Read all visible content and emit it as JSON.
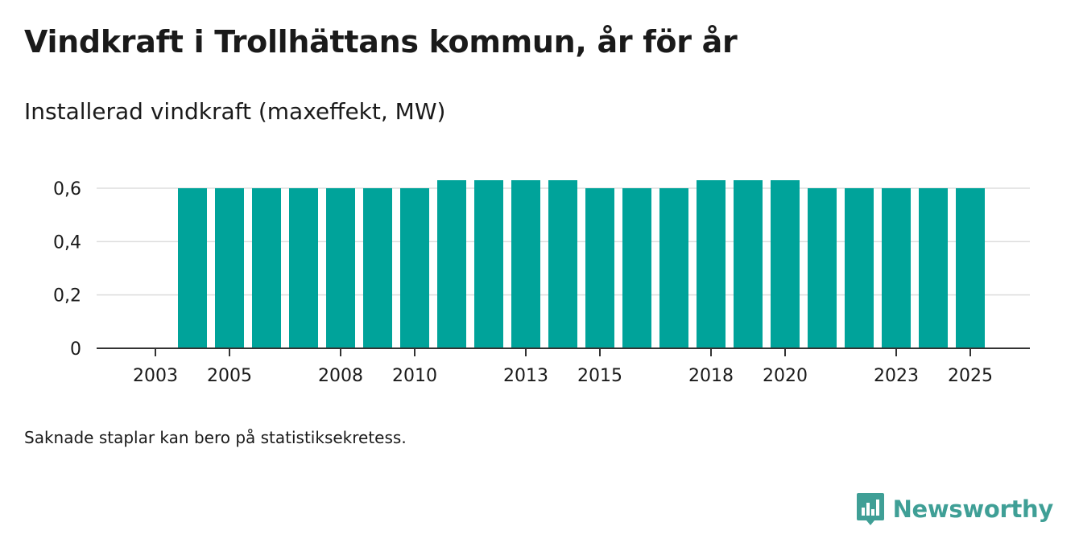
{
  "title": "Vindkraft i Trollhättans kommun, år för år",
  "subtitle": "Installerad vindkraft (maxeffekt, MW)",
  "footnote": "Saknade staplar kan bero på statistiksekretess.",
  "brand": {
    "name": "Newsworthy",
    "color": "#3f9f96"
  },
  "colors": {
    "bar": "#00a39a",
    "grid": "#dddddd",
    "axis": "#333333",
    "text": "#1a1a1a"
  },
  "chart_data": {
    "type": "bar",
    "title": "Vindkraft i Trollhättans kommun, år för år",
    "ylabel": "Installerad vindkraft (maxeffekt, MW)",
    "xlabel": "",
    "ylim": [
      0,
      0.6
    ],
    "grid": true,
    "yticks": [
      0,
      0.2,
      0.4,
      0.6
    ],
    "ytick_labels": [
      "0",
      "0,2",
      "0,4",
      "0,6"
    ],
    "categories": [
      2003,
      2004,
      2005,
      2006,
      2007,
      2008,
      2009,
      2010,
      2011,
      2012,
      2013,
      2014,
      2015,
      2016,
      2017,
      2018,
      2019,
      2020,
      2021,
      2022,
      2023,
      2024,
      2025
    ],
    "values": [
      null,
      0.6,
      0.6,
      0.6,
      0.6,
      0.6,
      0.6,
      0.6,
      0.63,
      0.63,
      0.63,
      0.63,
      0.6,
      0.6,
      0.6,
      0.63,
      0.63,
      0.63,
      0.6,
      0.6,
      0.6,
      0.6,
      0.6
    ],
    "xtick_labels": [
      "2003",
      "2005",
      "2008",
      "2010",
      "2013",
      "2015",
      "2018",
      "2020",
      "2023",
      "2025"
    ]
  }
}
